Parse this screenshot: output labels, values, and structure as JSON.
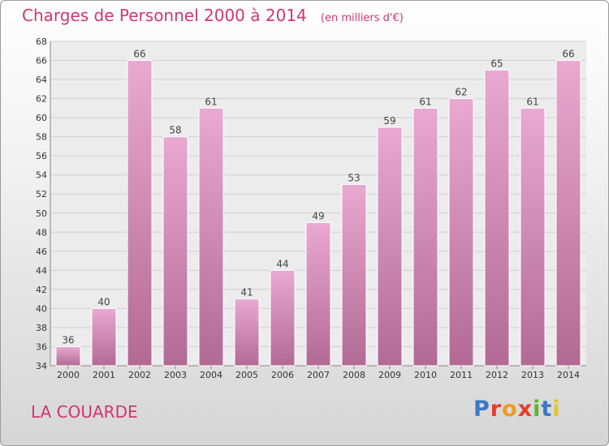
{
  "header": {
    "title": "Charges de Personnel 2000 à 2014",
    "unit": "(en milliers d'€)"
  },
  "footer": {
    "town": "LA COUARDE",
    "logo_text": "Proxiti",
    "logo_colors": [
      "#3a78c8",
      "#e83a2a",
      "#f19a1e",
      "#e83a2a",
      "#5cb531",
      "#3a78c8",
      "#e8c51d"
    ]
  },
  "colors": {
    "accent": "#d2366f",
    "bar_top": "#e9a9d1",
    "bar_bottom": "#b26a94"
  },
  "chart_data": {
    "type": "bar",
    "title": "Charges de Personnel 2000 à 2014",
    "subtitle": "(en milliers d'€)",
    "categories": [
      "2000",
      "2001",
      "2002",
      "2003",
      "2004",
      "2005",
      "2006",
      "2007",
      "2008",
      "2009",
      "2010",
      "2011",
      "2012",
      "2013",
      "2014"
    ],
    "values": [
      36,
      40,
      66,
      58,
      61,
      41,
      44,
      49,
      53,
      59,
      61,
      62,
      65,
      61,
      66
    ],
    "ylim": [
      34,
      68
    ],
    "yticks": [
      34,
      36,
      38,
      40,
      42,
      44,
      46,
      48,
      50,
      52,
      54,
      56,
      58,
      60,
      62,
      64,
      66,
      68
    ],
    "grid": true,
    "xlabel": "",
    "ylabel": ""
  }
}
